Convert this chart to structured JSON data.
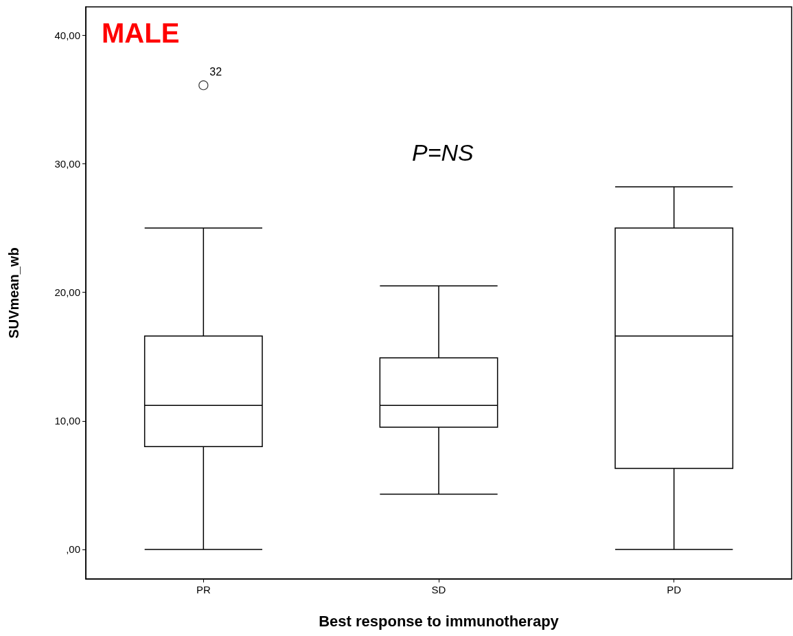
{
  "chart_data": {
    "type": "box",
    "xlabel": "Best response to immunotherapy",
    "ylabel": "SUVmean_wb",
    "categories": [
      "PR",
      "SD",
      "PD"
    ],
    "boxes": [
      {
        "low": 0,
        "q1": 8.0,
        "median": 11.2,
        "q3": 16.6,
        "high": 25.0,
        "outliers": [
          36.1
        ]
      },
      {
        "low": 4.3,
        "q1": 9.5,
        "median": 11.2,
        "q3": 14.9,
        "high": 20.5
      },
      {
        "low": 0,
        "q1": 6.3,
        "median": 16.6,
        "q3": 25.0,
        "high": 28.2
      }
    ],
    "ylim": [
      -2.3,
      42.2
    ],
    "yticks": [
      {
        "value": 0,
        "label": ",00"
      },
      {
        "value": 10,
        "label": "10,00"
      },
      {
        "value": 20,
        "label": "20,00"
      },
      {
        "value": 30,
        "label": "30,00"
      },
      {
        "value": 40,
        "label": "40,00"
      }
    ],
    "annotations": [
      "MALE",
      "P=NS",
      "32"
    ],
    "grid": false
  }
}
